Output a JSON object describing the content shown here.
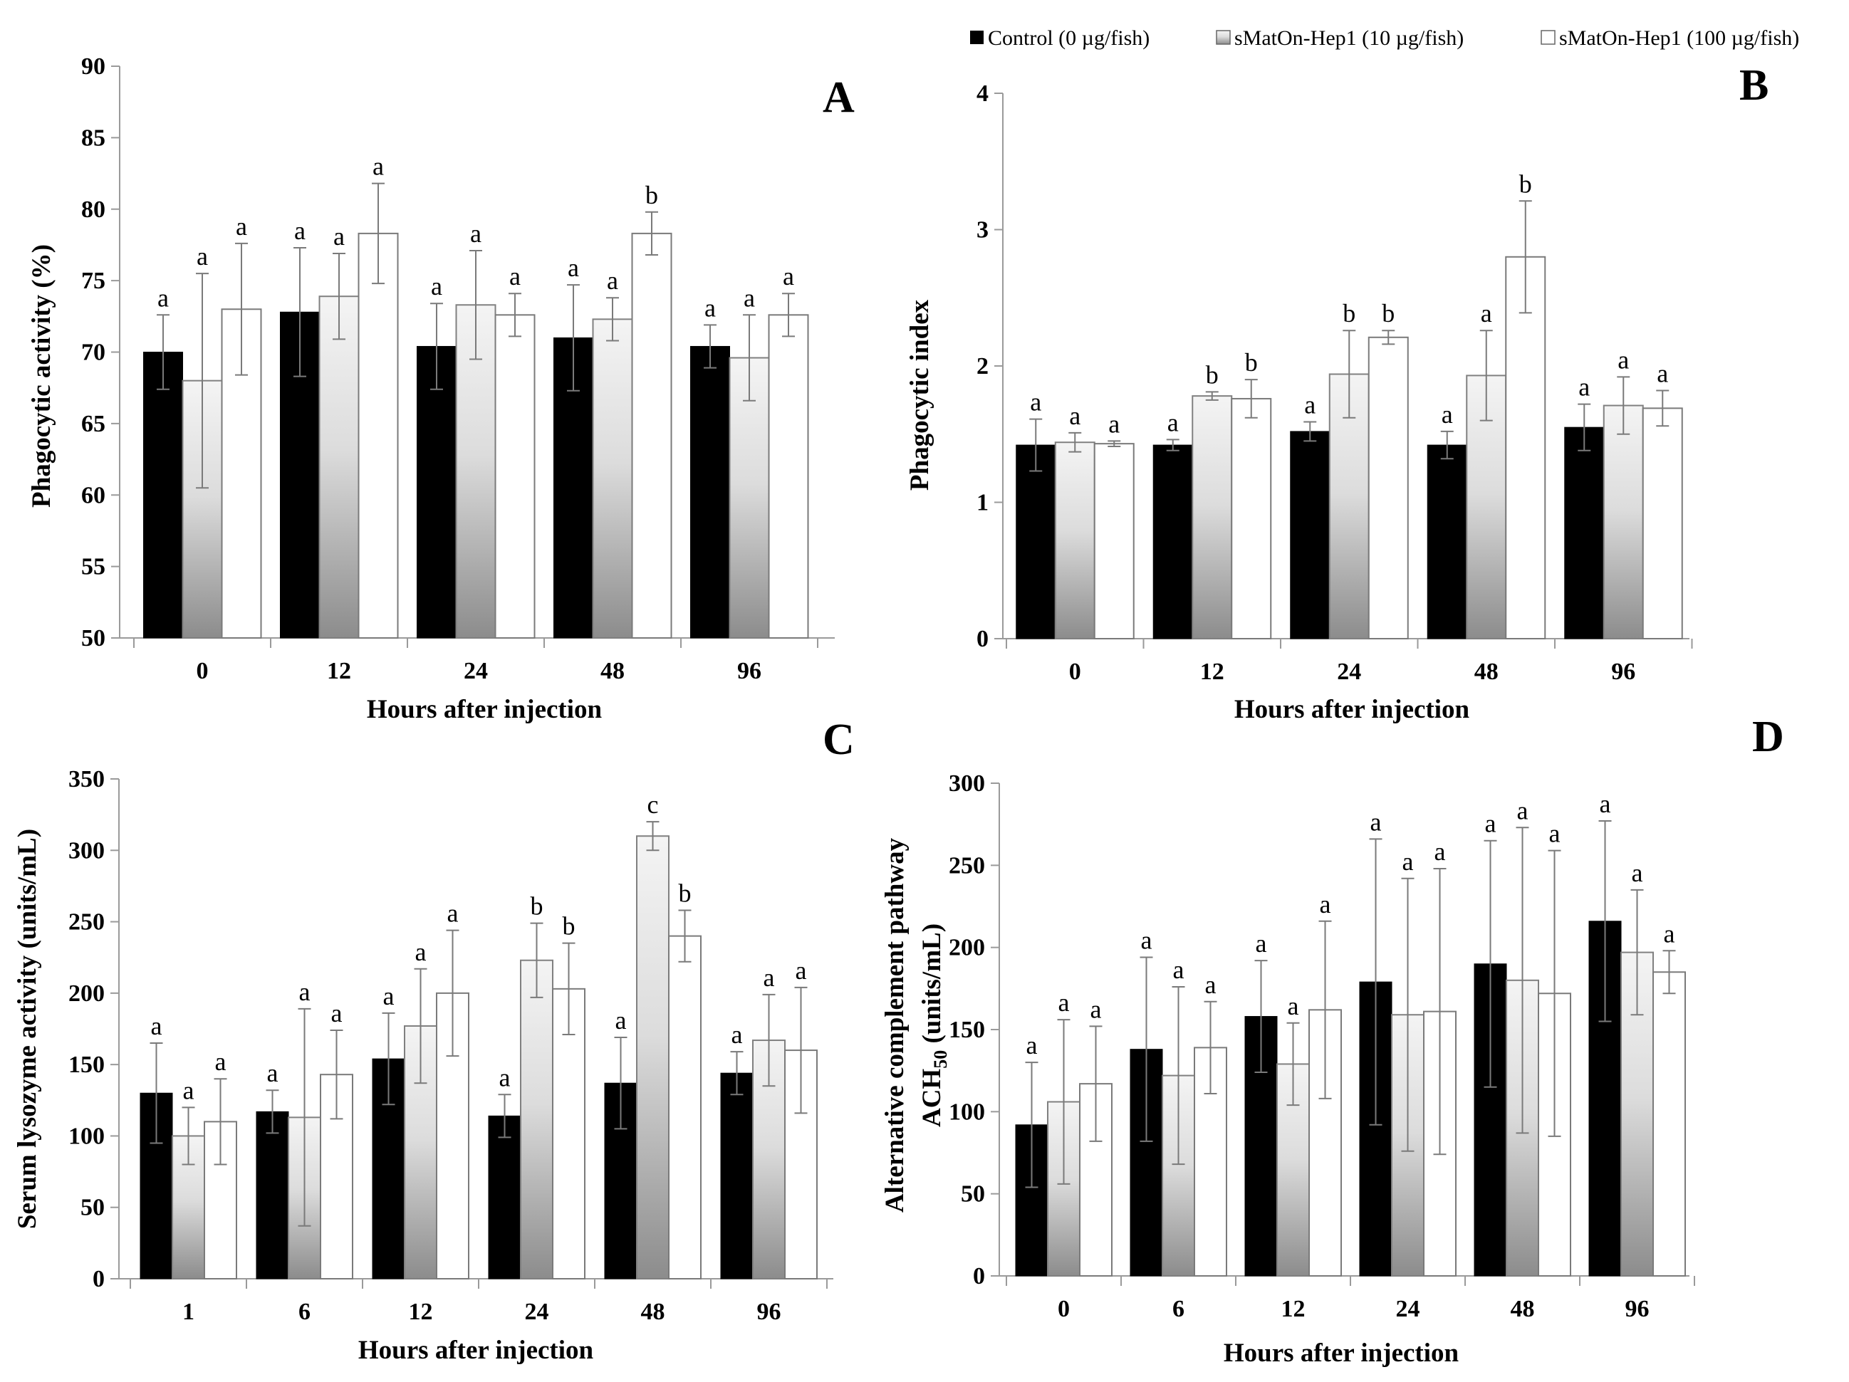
{
  "legend": [
    {
      "label": "Control (0 µg/fish)",
      "fill": "black"
    },
    {
      "label": "sMatOn-Hep1 (10 µg/fish)",
      "fill": "gradient"
    },
    {
      "label": "sMatOn-Hep1 (100 µg/fish)",
      "fill": "white"
    }
  ],
  "colors": {
    "control": "#000000",
    "low_dose_top": "#f4f4f4",
    "low_dose_bottom": "#8c8c8c",
    "high_dose": "#ffffff",
    "error_bar": "#7a7a7a",
    "axis": "#9a9a9a"
  },
  "chart_data": [
    {
      "panel": "A",
      "type": "bar",
      "xlabel": "Hours after injection",
      "ylabel": "Phagocytic activity (%)",
      "categories": [
        "0",
        "12",
        "24",
        "48",
        "96"
      ],
      "ylim": [
        50,
        90
      ],
      "yticks": [
        50,
        55,
        60,
        65,
        70,
        75,
        80,
        85,
        90
      ],
      "series": [
        {
          "name": "Control (0 µg/fish)",
          "values": [
            70.0,
            72.8,
            70.4,
            71.0,
            70.4
          ],
          "errors": [
            2.6,
            4.5,
            3.0,
            3.7,
            1.5
          ],
          "letters": [
            "a",
            "a",
            "a",
            "a",
            "a"
          ]
        },
        {
          "name": "sMatOn-Hep1 (10 µg/fish)",
          "values": [
            68.0,
            73.9,
            73.3,
            72.3,
            69.6
          ],
          "errors": [
            7.5,
            3.0,
            3.8,
            1.5,
            3.0
          ],
          "letters": [
            "a",
            "a",
            "a",
            "a",
            "a"
          ]
        },
        {
          "name": "sMatOn-Hep1 (100 µg/fish)",
          "values": [
            73.0,
            78.3,
            72.6,
            78.3,
            72.6
          ],
          "errors": [
            4.6,
            3.5,
            1.5,
            1.5,
            1.5
          ],
          "letters": [
            "a",
            "a",
            "a",
            "b",
            "a"
          ]
        }
      ]
    },
    {
      "panel": "B",
      "type": "bar",
      "xlabel": "Hours after injection",
      "ylabel": "Phagocytic index",
      "categories": [
        "0",
        "12",
        "24",
        "48",
        "96"
      ],
      "ylim": [
        0,
        4
      ],
      "yticks": [
        0,
        1,
        2,
        3,
        4
      ],
      "series": [
        {
          "name": "Control (0 µg/fish)",
          "values": [
            1.42,
            1.42,
            1.52,
            1.42,
            1.55
          ],
          "errors": [
            0.19,
            0.04,
            0.07,
            0.1,
            0.17
          ],
          "letters": [
            "a",
            "a",
            "a",
            "a",
            "a"
          ]
        },
        {
          "name": "sMatOn-Hep1 (10 µg/fish)",
          "values": [
            1.44,
            1.78,
            1.94,
            1.93,
            1.71
          ],
          "errors": [
            0.07,
            0.03,
            0.32,
            0.33,
            0.21
          ],
          "letters": [
            "a",
            "b",
            "b",
            "a",
            "a"
          ]
        },
        {
          "name": "sMatOn-Hep1 (100 µg/fish)",
          "values": [
            1.43,
            1.76,
            2.21,
            2.8,
            1.69
          ],
          "errors": [
            0.02,
            0.14,
            0.05,
            0.41,
            0.13
          ],
          "letters": [
            "a",
            "b",
            "b",
            "b",
            "a"
          ]
        }
      ]
    },
    {
      "panel": "C",
      "type": "bar",
      "xlabel": "Hours after injection",
      "ylabel": "Serum lysozyme activity (units/mL)",
      "categories": [
        "1",
        "6",
        "12",
        "24",
        "48",
        "96"
      ],
      "ylim": [
        0,
        350
      ],
      "yticks": [
        0,
        50,
        100,
        150,
        200,
        250,
        300,
        350
      ],
      "series": [
        {
          "name": "Control (0 µg/fish)",
          "values": [
            130,
            117,
            154,
            114,
            137,
            144
          ],
          "errors": [
            35,
            15,
            32,
            15,
            32,
            15
          ],
          "letters": [
            "a",
            "a",
            "a",
            "a",
            "a",
            "a"
          ]
        },
        {
          "name": "sMatOn-Hep1 (10 µg/fish)",
          "values": [
            100,
            113,
            177,
            223,
            310,
            167
          ],
          "errors": [
            20,
            76,
            40,
            26,
            10,
            32
          ],
          "letters": [
            "a",
            "a",
            "a",
            "b",
            "c",
            "a"
          ]
        },
        {
          "name": "sMatOn-Hep1 (100 µg/fish)",
          "values": [
            110,
            143,
            200,
            203,
            240,
            160
          ],
          "errors": [
            30,
            31,
            44,
            32,
            18,
            44
          ],
          "letters": [
            "a",
            "a",
            "a",
            "b",
            "b",
            "a"
          ]
        }
      ]
    },
    {
      "panel": "D",
      "type": "bar",
      "xlabel": "Hours after injection",
      "ylabel_line1": "Alternative complement pathway",
      "ylabel_line2_base": "ACH",
      "ylabel_line2_sub": "50",
      "ylabel_line2_unit": " (units/mL)",
      "categories": [
        "0",
        "6",
        "12",
        "24",
        "48",
        "96"
      ],
      "ylim": [
        0,
        300
      ],
      "yticks": [
        0,
        50,
        100,
        150,
        200,
        250,
        300
      ],
      "series": [
        {
          "name": "Control (0 µg/fish)",
          "values": [
            92,
            138,
            158,
            179,
            190,
            216
          ],
          "errors": [
            38,
            56,
            34,
            87,
            75,
            61
          ],
          "letters": [
            "a",
            "a",
            "a",
            "a",
            "a",
            "a"
          ]
        },
        {
          "name": "sMatOn-Hep1 (10 µg/fish)",
          "values": [
            106,
            122,
            129,
            159,
            180,
            197
          ],
          "errors": [
            50,
            54,
            25,
            83,
            93,
            38
          ],
          "letters": [
            "a",
            "a",
            "a",
            "a",
            "a",
            "a"
          ]
        },
        {
          "name": "sMatOn-Hep1 (100 µg/fish)",
          "values": [
            117,
            139,
            162,
            161,
            172,
            185
          ],
          "errors": [
            35,
            28,
            54,
            87,
            87,
            13
          ],
          "letters": [
            "a",
            "a",
            "a",
            "a",
            "a",
            "a"
          ]
        }
      ]
    }
  ]
}
